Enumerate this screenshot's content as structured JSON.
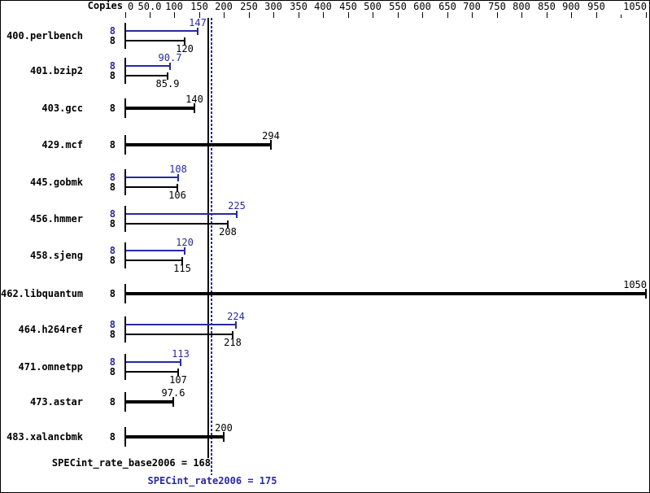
{
  "chart_data": {
    "type": "bar",
    "orientation": "horizontal",
    "title": "",
    "copies_header": "Copies",
    "xlim": [
      0,
      1050
    ],
    "grid": false,
    "legend": false,
    "colors": {
      "peak": "#2929a3",
      "base": "#000000",
      "background": "#ffffff"
    },
    "x_ticks": [
      {
        "value": 0,
        "label": "0"
      },
      {
        "value": 50,
        "label": "50.0"
      },
      {
        "value": 100,
        "label": "100"
      },
      {
        "value": 150,
        "label": "150"
      },
      {
        "value": 200,
        "label": "200"
      },
      {
        "value": 250,
        "label": "250"
      },
      {
        "value": 300,
        "label": "300"
      },
      {
        "value": 350,
        "label": "350"
      },
      {
        "value": 400,
        "label": "400"
      },
      {
        "value": 450,
        "label": "450"
      },
      {
        "value": 500,
        "label": "500"
      },
      {
        "value": 550,
        "label": "550"
      },
      {
        "value": 600,
        "label": "600"
      },
      {
        "value": 650,
        "label": "650"
      },
      {
        "value": 700,
        "label": "700"
      },
      {
        "value": 750,
        "label": "750"
      },
      {
        "value": 800,
        "label": "800"
      },
      {
        "value": 850,
        "label": "850"
      },
      {
        "value": 900,
        "label": "900"
      },
      {
        "value": 950,
        "label": "950"
      },
      {
        "value": 1000,
        "label": ""
      },
      {
        "value": 1050,
        "label": "1050"
      }
    ],
    "benchmarks": [
      {
        "name": "400.perlbench",
        "copies": "8",
        "peak": 147,
        "peak_label": "147",
        "base": 120,
        "base_label": "120"
      },
      {
        "name": "401.bzip2",
        "copies": "8",
        "peak": 90.7,
        "peak_label": "90.7",
        "base": 85.9,
        "base_label": "85.9"
      },
      {
        "name": "403.gcc",
        "copies": "8",
        "peak": null,
        "peak_label": "",
        "base": 140,
        "base_label": "140"
      },
      {
        "name": "429.mcf",
        "copies": "8",
        "peak": null,
        "peak_label": "",
        "base": 294,
        "base_label": "294"
      },
      {
        "name": "445.gobmk",
        "copies": "8",
        "peak": 108,
        "peak_label": "108",
        "base": 106,
        "base_label": "106"
      },
      {
        "name": "456.hmmer",
        "copies": "8",
        "peak": 225,
        "peak_label": "225",
        "base": 208,
        "base_label": "208"
      },
      {
        "name": "458.sjeng",
        "copies": "8",
        "peak": 120,
        "peak_label": "120",
        "base": 115,
        "base_label": "115"
      },
      {
        "name": "462.libquantum",
        "copies": "8",
        "peak": null,
        "peak_label": "",
        "base": 1050,
        "base_label": "1050"
      },
      {
        "name": "464.h264ref",
        "copies": "8",
        "peak": 224,
        "peak_label": "224",
        "base": 218,
        "base_label": "218"
      },
      {
        "name": "471.omnetpp",
        "copies": "8",
        "peak": 113,
        "peak_label": "113",
        "base": 107,
        "base_label": "107"
      },
      {
        "name": "473.astar",
        "copies": "8",
        "peak": null,
        "peak_label": "",
        "base": 97.6,
        "base_label": "97.6"
      },
      {
        "name": "483.xalancbmk",
        "copies": "8",
        "peak": null,
        "peak_label": "",
        "base": 200,
        "base_label": "200"
      }
    ],
    "reference_lines": [
      {
        "id": "base",
        "value": 168,
        "style": "solid",
        "color": "#000000",
        "label": "SPECint_rate_base2006 = 168"
      },
      {
        "id": "peak",
        "value": 175,
        "style": "dotted",
        "color": "#2929a3",
        "label": "SPECint_rate2006 = 175"
      }
    ]
  }
}
